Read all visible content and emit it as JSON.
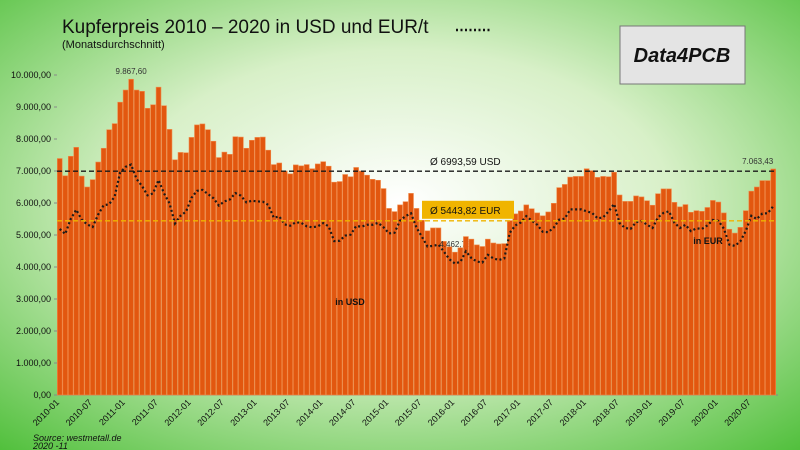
{
  "chart_data": {
    "type": "bar",
    "title": "Kupferpreis 2010 – 2020 in USD und EUR/t",
    "subtitle": "(Monatsdurchschnitt)",
    "logo": "Data4PCB",
    "source": "Source: westmetall.de",
    "source_date": "2020 -11",
    "categories": [
      "2010-01",
      null,
      null,
      null,
      null,
      null,
      "2010-07",
      null,
      null,
      null,
      null,
      null,
      "2011-01",
      null,
      null,
      null,
      null,
      null,
      "2011-07",
      null,
      null,
      null,
      null,
      null,
      "2012-01",
      null,
      null,
      null,
      null,
      null,
      "2012-07",
      null,
      null,
      null,
      null,
      null,
      "2013-01",
      null,
      null,
      null,
      null,
      null,
      "2013-07",
      null,
      null,
      null,
      null,
      null,
      "2014-01",
      null,
      null,
      null,
      null,
      null,
      "2014-07",
      null,
      null,
      null,
      null,
      null,
      "2015-01",
      null,
      null,
      null,
      null,
      null,
      "2015-07",
      null,
      null,
      null,
      null,
      null,
      "2016-01",
      null,
      null,
      null,
      null,
      null,
      "2016-07",
      null,
      null,
      null,
      null,
      null,
      "2017-01",
      null,
      null,
      null,
      null,
      null,
      "2017-07",
      null,
      null,
      null,
      null,
      null,
      "2018-01",
      null,
      null,
      null,
      null,
      null,
      "2018-07",
      null,
      null,
      null,
      null,
      null,
      "2019-01",
      null,
      null,
      null,
      null,
      null,
      "2019-07",
      null,
      null,
      null,
      null,
      null,
      "2020-01",
      null,
      null,
      null,
      null,
      null,
      "2020-07",
      null,
      null,
      null,
      null
    ],
    "series": [
      {
        "name": "in USD",
        "color": "#e2570f",
        "values": [
          7390,
          6850,
          7460,
          7740,
          6840,
          6500,
          6730,
          7280,
          7710,
          8290,
          8480,
          9150,
          9530,
          9867.6,
          9530,
          9490,
          8960,
          9070,
          9620,
          9040,
          8300,
          7350,
          7580,
          7570,
          8050,
          8440,
          8470,
          8290,
          7930,
          7420,
          7590,
          7520,
          8070,
          8060,
          7710,
          7960,
          8050,
          8060,
          7650,
          7200,
          7250,
          7000,
          6910,
          7190,
          7160,
          7200,
          7070,
          7220,
          7290,
          7150,
          6650,
          6670,
          6890,
          6820,
          7110,
          7000,
          6870,
          6740,
          6710,
          6450,
          5830,
          5730,
          5940,
          6040,
          6300,
          5830,
          5460,
          5130,
          5220,
          5220,
          4800,
          4630,
          4462.75,
          4600,
          4950,
          4870,
          4690,
          4640,
          4870,
          4750,
          4720,
          4730,
          5450,
          5660,
          5750,
          5940,
          5820,
          5690,
          5600,
          5720,
          5990,
          6480,
          6580,
          6810,
          6830,
          6830,
          7070,
          7010,
          6800,
          6830,
          6820,
          6960,
          6250,
          6050,
          6050,
          6220,
          6190,
          6070,
          5930,
          6290,
          6440,
          6440,
          6020,
          5880,
          5950,
          5710,
          5760,
          5740,
          5860,
          6080,
          6030,
          5690,
          5180,
          5060,
          5240,
          5760,
          6370,
          6500,
          6700,
          6700,
          7063.43
        ],
        "value_labels": [
          null,
          null,
          null,
          null,
          null,
          null,
          null,
          null,
          null,
          null,
          null,
          null,
          null,
          "9.867,60",
          null,
          null,
          null,
          null,
          null,
          null,
          null,
          null,
          null,
          null,
          null,
          null,
          null,
          null,
          null,
          null,
          null,
          null,
          null,
          null,
          null,
          null,
          null,
          null,
          null,
          null,
          null,
          null,
          null,
          null,
          null,
          null,
          null,
          null,
          null,
          null,
          null,
          null,
          null,
          null,
          null,
          null,
          null,
          null,
          null,
          null,
          null,
          null,
          null,
          null,
          null,
          null,
          null,
          null,
          null,
          null,
          null,
          null,
          "4.462,75",
          null,
          null,
          null,
          null,
          null,
          null,
          null,
          null,
          null,
          null,
          null,
          null,
          null,
          null,
          null,
          null,
          null,
          null,
          null,
          null,
          null,
          null,
          null,
          null,
          null,
          null,
          null,
          null,
          null,
          null,
          null,
          null,
          null,
          null,
          null,
          null,
          null,
          null,
          null,
          null,
          null,
          null,
          null,
          null,
          null,
          null,
          null,
          null,
          null,
          null,
          null,
          null,
          null,
          null,
          null,
          null,
          null,
          "7.063,43"
        ]
      },
      {
        "name": "in EUR",
        "color": "#1a1a1a",
        "type": "line",
        "values": [
          5190,
          5030,
          5500,
          5790,
          5480,
          5330,
          5250,
          5640,
          5930,
          5960,
          6200,
          6950,
          7130,
          7200,
          6750,
          6530,
          6240,
          6300,
          6720,
          6300,
          5990,
          5360,
          5600,
          5730,
          6160,
          6380,
          6410,
          6280,
          6150,
          5920,
          6050,
          6110,
          6310,
          6230,
          6020,
          6070,
          6050,
          6040,
          5940,
          5540,
          5580,
          5330,
          5290,
          5400,
          5380,
          5270,
          5240,
          5270,
          5370,
          5270,
          4810,
          4820,
          4980,
          5010,
          5280,
          5260,
          5320,
          5320,
          5380,
          5240,
          5050,
          5070,
          5450,
          5590,
          5680,
          5230,
          4940,
          4640,
          4660,
          4700,
          4480,
          4240,
          4110,
          4160,
          4490,
          4280,
          4170,
          4140,
          4380,
          4270,
          4220,
          4270,
          5070,
          5300,
          5390,
          5590,
          5450,
          5320,
          5100,
          5090,
          5230,
          5480,
          5510,
          5800,
          5800,
          5800,
          5740,
          5690,
          5520,
          5550,
          5740,
          5970,
          5370,
          5220,
          5190,
          5400,
          5440,
          5320,
          5220,
          5550,
          5690,
          5740,
          5380,
          5220,
          5320,
          5120,
          5210,
          5190,
          5300,
          5470,
          5440,
          5200,
          4700,
          4660,
          4800,
          5130,
          5600,
          5500,
          5670,
          5680,
          5900
        ]
      }
    ],
    "reference_lines": [
      {
        "value": 6993.59,
        "label": "Ø 6993,59  USD",
        "color": "#1a1a1a"
      },
      {
        "value": 5443.82,
        "label": "Ø 5443,82  EUR",
        "color": "#f0b400"
      }
    ],
    "ylim": [
      0,
      10500
    ],
    "yticks": [
      {
        "value": 0,
        "label": "0,00"
      },
      {
        "value": 1000,
        "label": "1.000,00"
      },
      {
        "value": 2000,
        "label": "2.000,00"
      },
      {
        "value": 3000,
        "label": "3.000,00"
      },
      {
        "value": 4000,
        "label": "4.000,00"
      },
      {
        "value": 5000,
        "label": "5.000,00"
      },
      {
        "value": 6000,
        "label": "6.000,00"
      },
      {
        "value": 7000,
        "label": "7.000,00"
      },
      {
        "value": 8000,
        "label": "8.000,00"
      },
      {
        "value": 9000,
        "label": "9.000,00"
      },
      {
        "value": 10000,
        "label": "10.000,00"
      }
    ],
    "grid": false
  }
}
